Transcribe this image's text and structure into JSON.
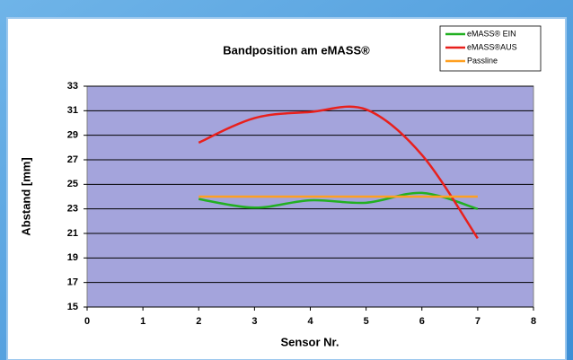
{
  "chart_data": {
    "type": "line",
    "title": "Bandposition am eMASS®",
    "x_label": "Sensor Nr.",
    "y_label": "Abstand [mm]",
    "x": [
      2,
      3,
      4,
      5,
      6,
      7
    ],
    "series": [
      {
        "name": "eMASS® EIN",
        "color": "#22b022",
        "values": [
          23.8,
          23.1,
          23.7,
          23.5,
          24.3,
          23.0
        ]
      },
      {
        "name": "eMASS®AUS",
        "color": "#e8201c",
        "values": [
          28.4,
          30.4,
          30.9,
          31.1,
          27.4,
          20.6
        ]
      },
      {
        "name": "Passline",
        "color": "#ffa020",
        "values": [
          24,
          24,
          24,
          24,
          24,
          24
        ]
      }
    ],
    "xlim": [
      0,
      8
    ],
    "xticks": [
      0,
      1,
      2,
      3,
      4,
      5,
      6,
      7,
      8
    ],
    "ylim": [
      15,
      33
    ],
    "yticks": [
      15,
      17,
      19,
      21,
      23,
      25,
      27,
      29,
      31,
      33
    ],
    "grid": true,
    "smooth": true,
    "legend": "top-right"
  }
}
